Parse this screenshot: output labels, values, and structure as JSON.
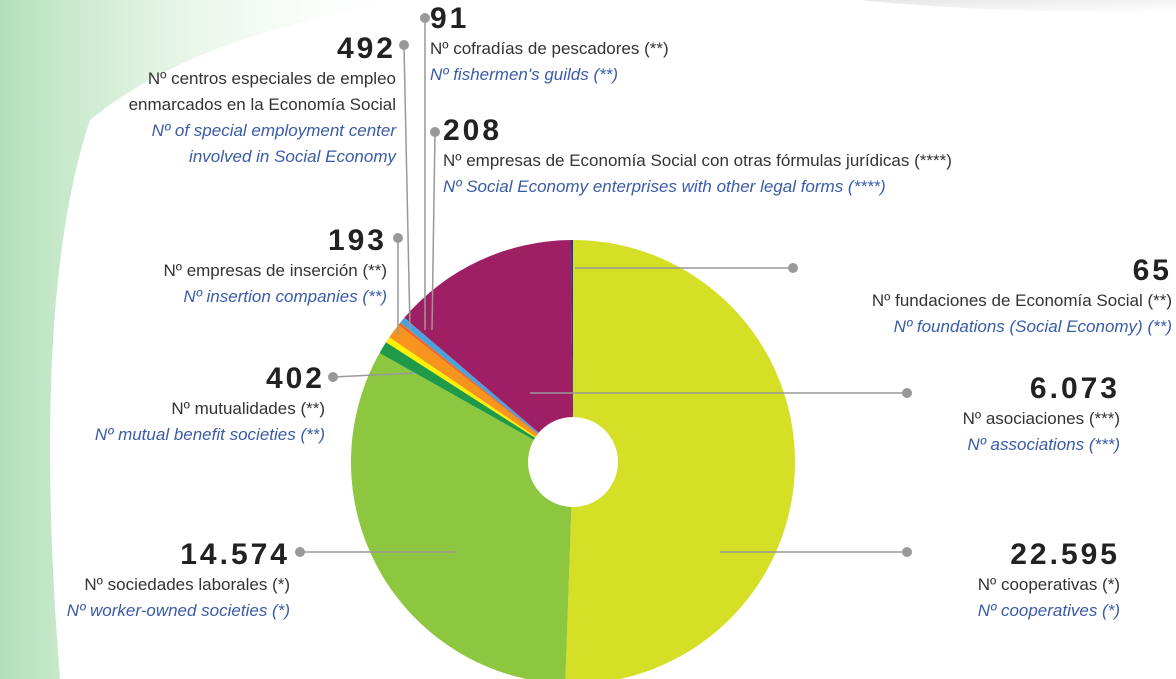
{
  "chart_data": {
    "type": "pie",
    "categories": [
      "Nº cooperativas (*)",
      "Nº sociedades laborales (*)",
      "Nº mutualidades (**)",
      "Nº empresas de inserción (**)",
      "Nº centros especiales de empleo enmarcados en la Economía Social",
      "Nº cofradías de pescadores (**)",
      "Nº empresas de Economía Social con otras fórmulas jurídicas (****)",
      "Nº asociaciones (***)",
      "Nº fundaciones de Economía Social (**)"
    ],
    "categories_en": [
      "Nº cooperatives (*)",
      "Nº worker-owned societies (*)",
      "Nº mutual benefit societies (**)",
      "Nº insertion companies (**)",
      "Nº of special employment center involved in Social Economy",
      "Nº fishermen's guilds (**)",
      "Nº Social Economy enterprises with other legal forms (****)",
      "Nº associations (***)",
      "Nº foundations (Social Economy) (**)"
    ],
    "values": [
      22595,
      14574,
      402,
      193,
      492,
      91,
      208,
      6073,
      65
    ],
    "value_labels": [
      "22.595",
      "14.574",
      "402",
      "193",
      "492",
      "91",
      "208",
      "6.073",
      "65"
    ],
    "colors": [
      "#d4df26",
      "#8dc63f",
      "#1f9a48",
      "#fff200",
      "#f7941d",
      "#f26522",
      "#4aa3df",
      "#9e1f63",
      "#2e3192"
    ]
  }
}
